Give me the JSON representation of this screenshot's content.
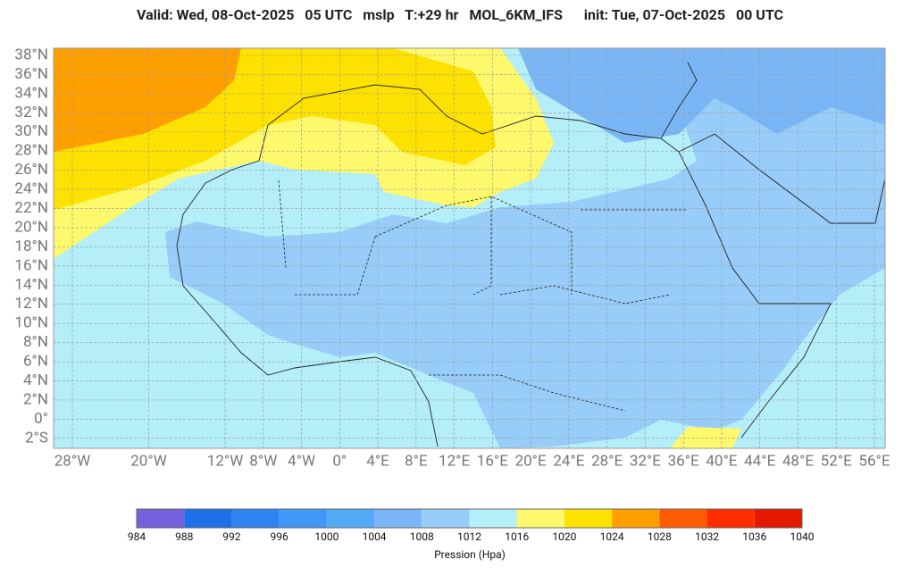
{
  "header": {
    "title": "Valid: Wed, 08-Oct-2025   05 UTC   mslp   T:+29 hr   MOL_6KM_IFS      init: Tue, 07-Oct-2025   00 UTC"
  },
  "map": {
    "lat_ticks": [
      {
        "value": 38,
        "label": "38°N"
      },
      {
        "value": 36,
        "label": "36°N"
      },
      {
        "value": 34,
        "label": "34°N"
      },
      {
        "value": 32,
        "label": "32°N"
      },
      {
        "value": 30,
        "label": "30°N"
      },
      {
        "value": 28,
        "label": "28°N"
      },
      {
        "value": 26,
        "label": "26°N"
      },
      {
        "value": 24,
        "label": "24°N"
      },
      {
        "value": 22,
        "label": "22°N"
      },
      {
        "value": 20,
        "label": "20°N"
      },
      {
        "value": 18,
        "label": "18°N"
      },
      {
        "value": 16,
        "label": "16°N"
      },
      {
        "value": 14,
        "label": "14°N"
      },
      {
        "value": 12,
        "label": "12°N"
      },
      {
        "value": 10,
        "label": "10°N"
      },
      {
        "value": 8,
        "label": "8°N"
      },
      {
        "value": 6,
        "label": "6°N"
      },
      {
        "value": 4,
        "label": "4°N"
      },
      {
        "value": 2,
        "label": "2°N"
      },
      {
        "value": 0,
        "label": "0°"
      },
      {
        "value": -2,
        "label": "2°S"
      }
    ],
    "lon_ticks": [
      {
        "value": -28,
        "label": "28°W"
      },
      {
        "value": -20,
        "label": "20°W"
      },
      {
        "value": -12,
        "label": "12°W"
      },
      {
        "value": -8,
        "label": "8°W"
      },
      {
        "value": -4,
        "label": "4°W"
      },
      {
        "value": 0,
        "label": "0°"
      },
      {
        "value": 4,
        "label": "4°E"
      },
      {
        "value": 8,
        "label": "8°E"
      },
      {
        "value": 12,
        "label": "12°E"
      },
      {
        "value": 16,
        "label": "16°E"
      },
      {
        "value": 20,
        "label": "20°E"
      },
      {
        "value": 24,
        "label": "24°E"
      },
      {
        "value": 28,
        "label": "28°E"
      },
      {
        "value": 32,
        "label": "32°E"
      },
      {
        "value": 36,
        "label": "36°E"
      },
      {
        "value": 40,
        "label": "40°E"
      },
      {
        "value": 44,
        "label": "44°E"
      },
      {
        "value": 48,
        "label": "48°E"
      },
      {
        "value": 52,
        "label": "52°E"
      },
      {
        "value": 56,
        "label": "56°E"
      }
    ]
  },
  "colorbar": {
    "ticks": [
      984,
      988,
      992,
      996,
      1000,
      1004,
      1008,
      1012,
      1016,
      1020,
      1024,
      1028,
      1032,
      1036,
      1040
    ],
    "colors": [
      "#7461dc",
      "#1f6fe8",
      "#2e84f0",
      "#3f98f4",
      "#54a9f5",
      "#7ab6f6",
      "#97cdf8",
      "#b4eef8",
      "#fef86c",
      "#fde100",
      "#fe9f00",
      "#ff5c00",
      "#ff2e00",
      "#e31a00"
    ],
    "label": "Pression (Hpa)"
  }
}
